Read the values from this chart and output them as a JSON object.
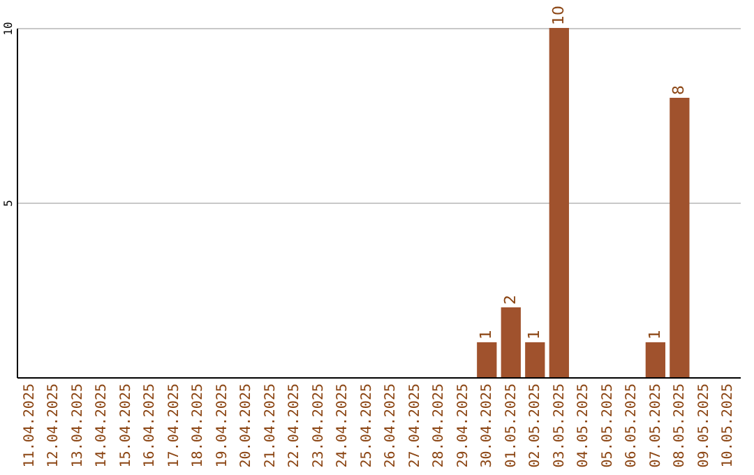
{
  "chart_data": {
    "type": "bar",
    "categories": [
      "11.04.2025",
      "12.04.2025",
      "13.04.2025",
      "14.04.2025",
      "15.04.2025",
      "16.04.2025",
      "17.04.2025",
      "18.04.2025",
      "19.04.2025",
      "20.04.2025",
      "21.04.2025",
      "22.04.2025",
      "23.04.2025",
      "24.04.2025",
      "25.04.2025",
      "26.04.2025",
      "27.04.2025",
      "28.04.2025",
      "29.04.2025",
      "30.04.2025",
      "01.05.2025",
      "02.05.2025",
      "03.05.2025",
      "04.05.2025",
      "05.05.2025",
      "06.05.2025",
      "07.05.2025",
      "08.05.2025",
      "09.05.2025",
      "10.05.2025"
    ],
    "values": [
      null,
      null,
      null,
      null,
      null,
      null,
      null,
      null,
      null,
      null,
      null,
      null,
      null,
      null,
      null,
      null,
      null,
      null,
      null,
      1,
      2,
      1,
      10,
      null,
      null,
      null,
      1,
      8,
      null,
      null
    ],
    "color": "#a0522d",
    "ylim": [
      0,
      10
    ],
    "yticks": [
      5,
      10
    ],
    "grid": "y",
    "data_labels": true
  }
}
